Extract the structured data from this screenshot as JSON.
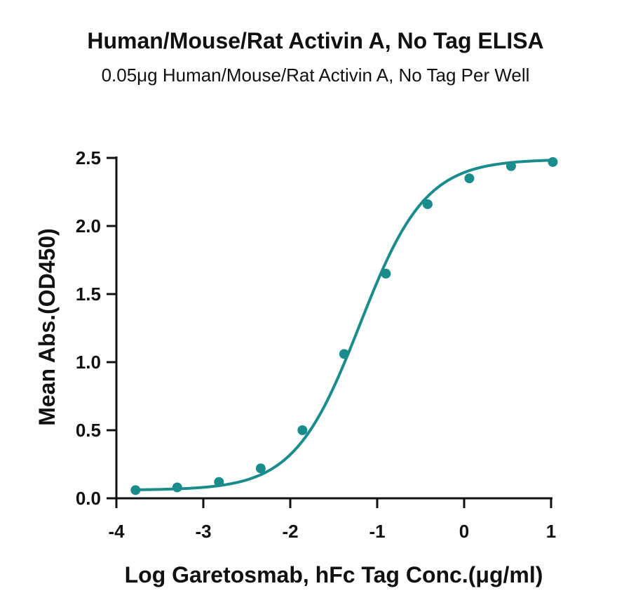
{
  "chart_data": {
    "type": "scatter",
    "title": "Human/Mouse/Rat Activin A, No Tag ELISA",
    "subtitle": "0.05μg Human/Mouse/Rat Activin A, No Tag Per Well",
    "xlabel": "Log Garetosmab, hFc Tag Conc.(μg/ml)",
    "ylabel": "Mean Abs.(OD450)",
    "xlim": [
      -4,
      1
    ],
    "ylim": [
      0,
      2.5
    ],
    "x_ticks": [
      -4,
      -3,
      -2,
      -1,
      0,
      1
    ],
    "x_tick_labels": [
      "-4",
      "-3",
      "-2",
      "-1",
      "0",
      "1"
    ],
    "y_ticks": [
      0,
      0.5,
      1,
      1.5,
      2,
      2.5
    ],
    "y_tick_labels": [
      "0.0",
      "0.5",
      "1.0",
      "1.5",
      "2.0",
      "2.5"
    ],
    "grid": false,
    "color": "#1a8c8c",
    "series": [
      {
        "x": [
          -3.78,
          -3.3,
          -2.82,
          -2.34,
          -1.86,
          -1.38,
          -0.9,
          -0.42,
          0.06,
          0.54,
          1.02
        ],
        "y": [
          0.06,
          0.08,
          0.12,
          0.22,
          0.5,
          1.06,
          1.65,
          2.16,
          2.35,
          2.44,
          2.47
        ]
      }
    ],
    "fit_curve": {
      "model": "4PL",
      "bottom": 0.06,
      "top": 2.49,
      "logEC50": -1.2,
      "hill": 1.15
    }
  }
}
